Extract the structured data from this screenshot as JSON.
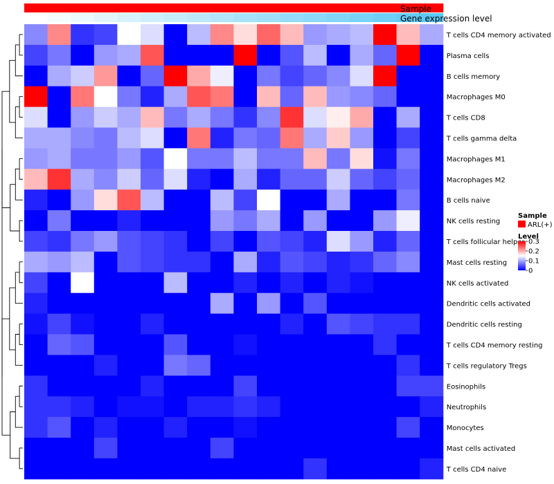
{
  "chart_data": {
    "type": "heatmap",
    "title": "",
    "annotation_tracks": [
      {
        "name": "Sample",
        "colors": [
          "#FF0000"
        ]
      },
      {
        "name": "Gene expression level",
        "gradient": [
          "#FFFFFF",
          "#5BC8F5"
        ]
      }
    ],
    "rows": [
      "T cells CD4 memory activated",
      "Plasma cells",
      "B cells memory",
      "Macrophages M0",
      "T cells CD8",
      "T cells gamma delta",
      "Macrophages M1",
      "Macrophages M2",
      "B cells naive",
      "NK cells resting",
      "T cells follicular helper",
      "Mast cells resting",
      "NK cells activated",
      "Dendritic cells activated",
      "Dendritic cells resting",
      "T cells CD4 memory resting",
      "T cells regulatory  Tregs",
      "Eosinophils",
      "Neutrophils",
      "Monocytes",
      "Mast cells activated",
      "T cells CD4 naive"
    ],
    "n_columns": 18,
    "values": [
      [
        0.08,
        0.22,
        0.03,
        0.04,
        0.15,
        0.13,
        0.0,
        0.11,
        0.22,
        0.17,
        0.24,
        0.19,
        0.09,
        0.1,
        0.11,
        0.3,
        0.19,
        0.1
      ],
      [
        0.04,
        0.07,
        0.0,
        0.09,
        0.1,
        0.25,
        0.0,
        0.0,
        0.0,
        0.3,
        0.0,
        0.05,
        0.11,
        0.0,
        0.1,
        0.06,
        0.3,
        0.0
      ],
      [
        0.0,
        0.1,
        0.12,
        0.21,
        0.0,
        0.06,
        0.3,
        0.2,
        0.14,
        0.0,
        0.07,
        0.04,
        0.06,
        0.08,
        0.13,
        0.3,
        0.0,
        0.0
      ],
      [
        0.3,
        0.0,
        0.23,
        0.15,
        0.07,
        0.02,
        0.1,
        0.25,
        0.23,
        0.0,
        0.19,
        0.06,
        0.19,
        0.09,
        0.08,
        0.06,
        0.0,
        0.0
      ],
      [
        0.13,
        0.0,
        0.09,
        0.12,
        0.1,
        0.19,
        0.07,
        0.1,
        0.07,
        0.03,
        0.08,
        0.27,
        0.13,
        0.16,
        0.2,
        0.0,
        0.1,
        0.0
      ],
      [
        0.1,
        0.1,
        0.08,
        0.07,
        0.11,
        0.13,
        0.0,
        0.23,
        0.02,
        0.07,
        0.06,
        0.23,
        0.1,
        0.18,
        0.09,
        0.0,
        0.04,
        0.0
      ],
      [
        0.09,
        0.1,
        0.07,
        0.07,
        0.09,
        0.05,
        0.15,
        0.07,
        0.07,
        0.11,
        0.07,
        0.07,
        0.19,
        0.07,
        0.17,
        0.01,
        0.07,
        0.0
      ],
      [
        0.19,
        0.27,
        0.1,
        0.08,
        0.12,
        0.06,
        0.13,
        0.02,
        0.0,
        0.1,
        0.02,
        0.06,
        0.06,
        0.12,
        0.06,
        0.04,
        0.06,
        0.0
      ],
      [
        0.02,
        0.0,
        0.09,
        0.17,
        0.25,
        0.11,
        0.0,
        0.0,
        0.11,
        0.04,
        0.15,
        0.0,
        0.0,
        0.1,
        0.0,
        0.0,
        0.07,
        0.0
      ],
      [
        0.0,
        0.07,
        0.0,
        0.0,
        0.02,
        0.0,
        0.0,
        0.0,
        0.09,
        0.07,
        0.1,
        0.0,
        0.09,
        0.0,
        0.0,
        0.09,
        0.14,
        0.0
      ],
      [
        0.04,
        0.03,
        0.07,
        0.09,
        0.05,
        0.04,
        0.03,
        0.0,
        0.04,
        0.0,
        0.05,
        0.04,
        0.02,
        0.13,
        0.09,
        0.02,
        0.06,
        0.0
      ],
      [
        0.1,
        0.09,
        0.11,
        0.0,
        0.05,
        0.04,
        0.03,
        0.03,
        0.0,
        0.1,
        0.02,
        0.05,
        0.04,
        0.02,
        0.03,
        0.06,
        0.08,
        0.0
      ],
      [
        0.04,
        0.0,
        0.15,
        0.0,
        0.0,
        0.0,
        0.11,
        0.0,
        0.0,
        0.02,
        0.0,
        0.02,
        0.0,
        0.02,
        0.01,
        0.0,
        0.0,
        0.0
      ],
      [
        0.02,
        0.0,
        0.0,
        0.0,
        0.0,
        0.0,
        0.0,
        0.0,
        0.1,
        0.0,
        0.09,
        0.0,
        0.05,
        0.0,
        0.0,
        0.0,
        0.0,
        0.0
      ],
      [
        0.01,
        0.04,
        0.01,
        0.0,
        0.0,
        0.02,
        0.0,
        0.0,
        0.0,
        0.0,
        0.0,
        0.02,
        0.0,
        0.05,
        0.04,
        0.03,
        0.03,
        0.0
      ],
      [
        0.0,
        0.06,
        0.05,
        0.0,
        0.0,
        0.0,
        0.05,
        0.0,
        0.0,
        0.01,
        0.0,
        0.0,
        0.0,
        0.0,
        0.0,
        0.03,
        0.0,
        0.0
      ],
      [
        0.0,
        0.0,
        0.0,
        0.02,
        0.0,
        0.0,
        0.07,
        0.06,
        0.0,
        0.0,
        0.0,
        0.0,
        0.0,
        0.0,
        0.0,
        0.0,
        0.03,
        0.0
      ],
      [
        0.03,
        0.0,
        0.0,
        0.0,
        0.0,
        0.02,
        0.0,
        0.0,
        0.0,
        0.04,
        0.0,
        0.0,
        0.0,
        0.0,
        0.0,
        0.0,
        0.04,
        0.04
      ],
      [
        0.03,
        0.03,
        0.02,
        0.0,
        0.01,
        0.01,
        0.0,
        0.02,
        0.02,
        0.03,
        0.02,
        0.0,
        0.0,
        0.0,
        0.0,
        0.0,
        0.0,
        0.02
      ],
      [
        0.03,
        0.05,
        0.0,
        0.02,
        0.0,
        0.0,
        0.02,
        0.0,
        0.0,
        0.01,
        0.0,
        0.0,
        0.0,
        0.0,
        0.0,
        0.0,
        0.04,
        0.0
      ],
      [
        0.0,
        0.0,
        0.0,
        0.04,
        0.0,
        0.0,
        0.0,
        0.0,
        0.04,
        0.0,
        0.0,
        0.0,
        0.0,
        0.0,
        0.0,
        0.0,
        0.0,
        0.0
      ],
      [
        0.0,
        0.0,
        0.0,
        0.0,
        0.0,
        0.0,
        0.0,
        0.0,
        0.0,
        0.0,
        0.0,
        0.0,
        0.03,
        0.0,
        0.0,
        0.0,
        0.0,
        0.02
      ]
    ],
    "color_scale": {
      "min": 0,
      "mid": 0.15,
      "max": 0.3,
      "low": "#0000FF",
      "midColor": "#FFFFFF",
      "high": "#FF0000"
    },
    "legend": {
      "sample_title": "Sample",
      "sample_label": "ARL(+)",
      "sample_color": "#FF0000",
      "level_title": "Level",
      "level_ticks": [
        {
          "value": 0.3,
          "label": "0.3"
        },
        {
          "value": 0.2,
          "label": "0.2"
        },
        {
          "value": 0.1,
          "label": "0.1"
        },
        {
          "value": 0,
          "label": "0"
        }
      ],
      "placement": "right"
    },
    "row_dendrogram": true
  }
}
